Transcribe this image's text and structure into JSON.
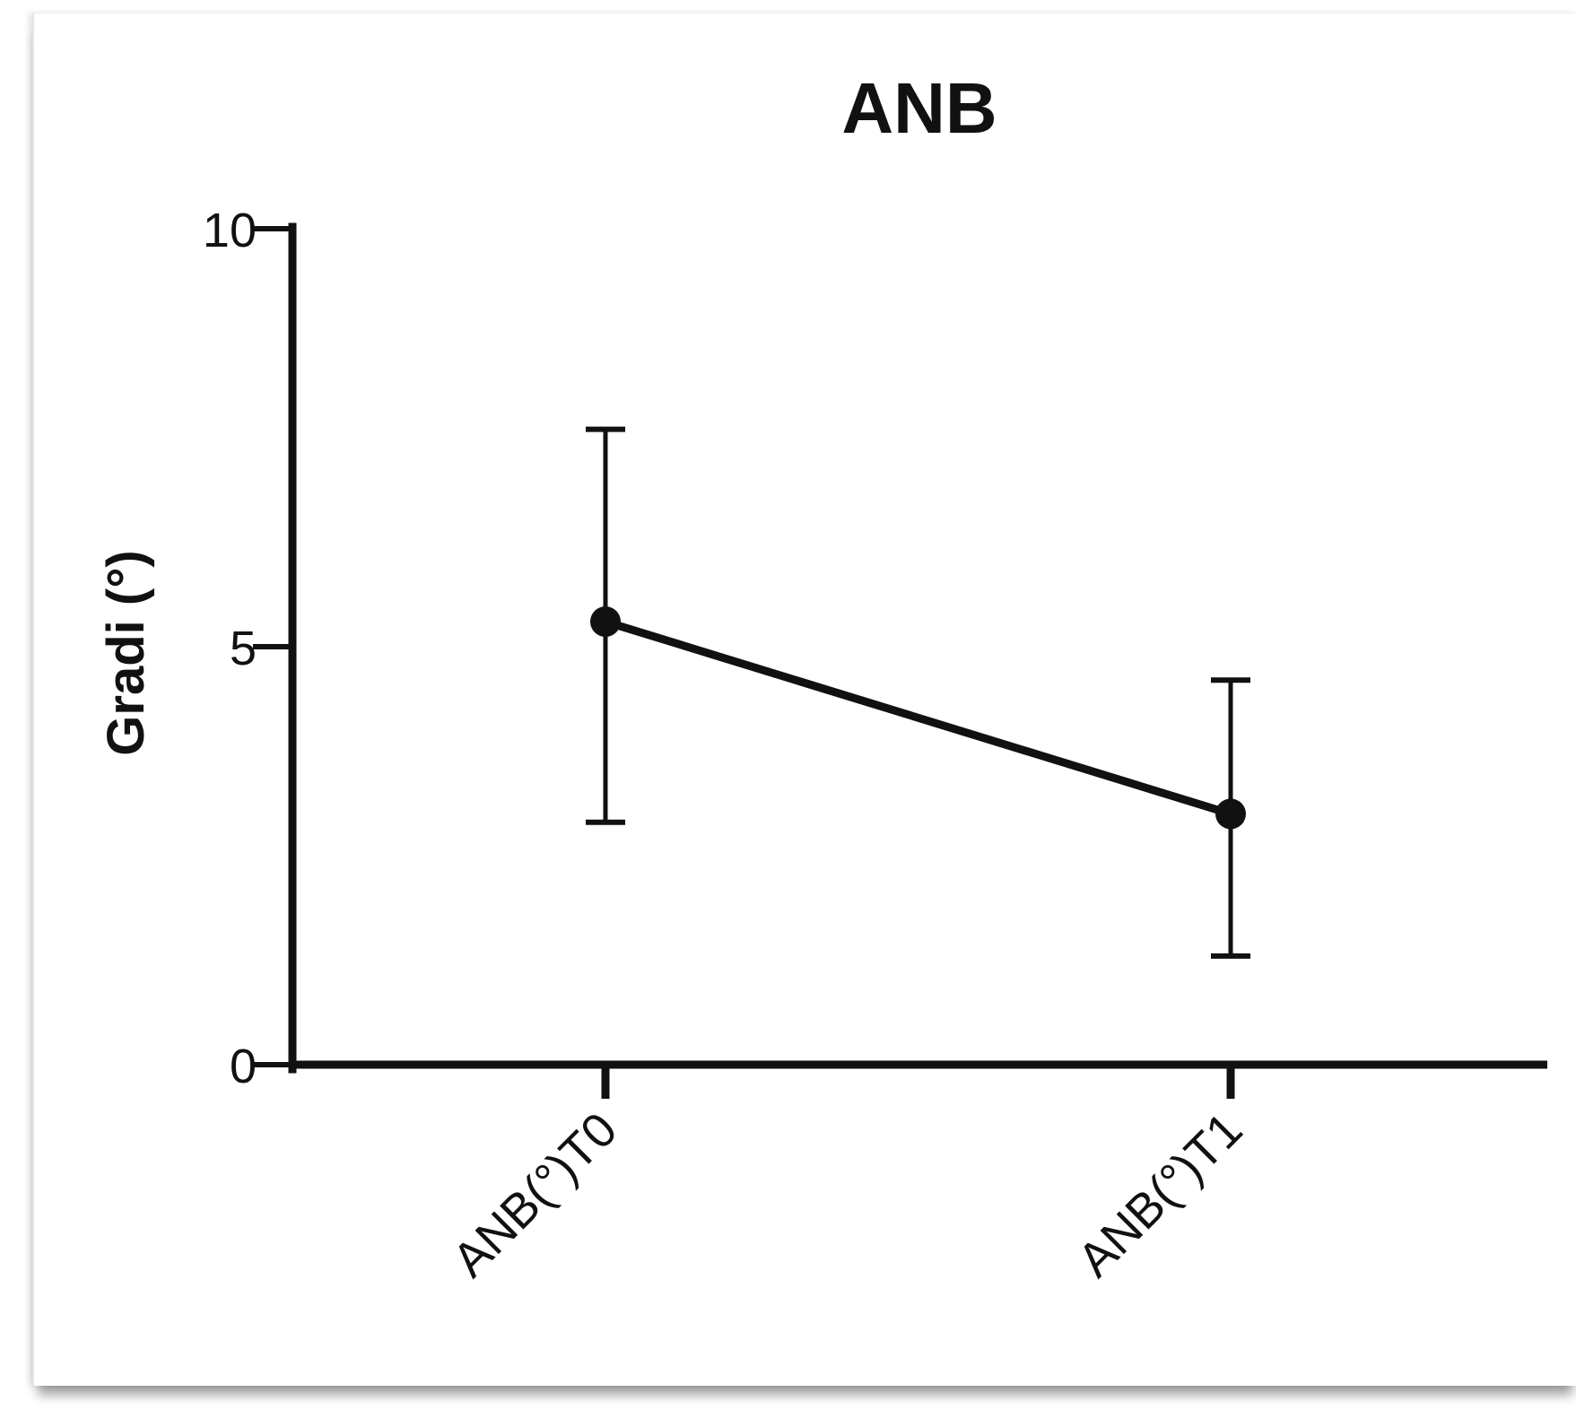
{
  "chart_data": {
    "type": "line",
    "title": "ANB",
    "xlabel": "",
    "ylabel": "Gradi (°)",
    "categories": [
      "ANB(°)T0",
      "ANB(°)T1"
    ],
    "series": [
      {
        "values": [
          5.3,
          3.0
        ],
        "error_low": [
          2.9,
          1.3
        ],
        "error_high": [
          7.6,
          4.6
        ]
      }
    ],
    "ylim": [
      0,
      10
    ],
    "yticks": [
      0,
      5,
      10
    ],
    "ytick_labels": [
      "0",
      "5",
      "10"
    ],
    "grid": false,
    "legend": "none",
    "colors": {
      "line": "#111111",
      "marker": "#111111",
      "axis": "#111111",
      "background": "#ffffff"
    }
  }
}
